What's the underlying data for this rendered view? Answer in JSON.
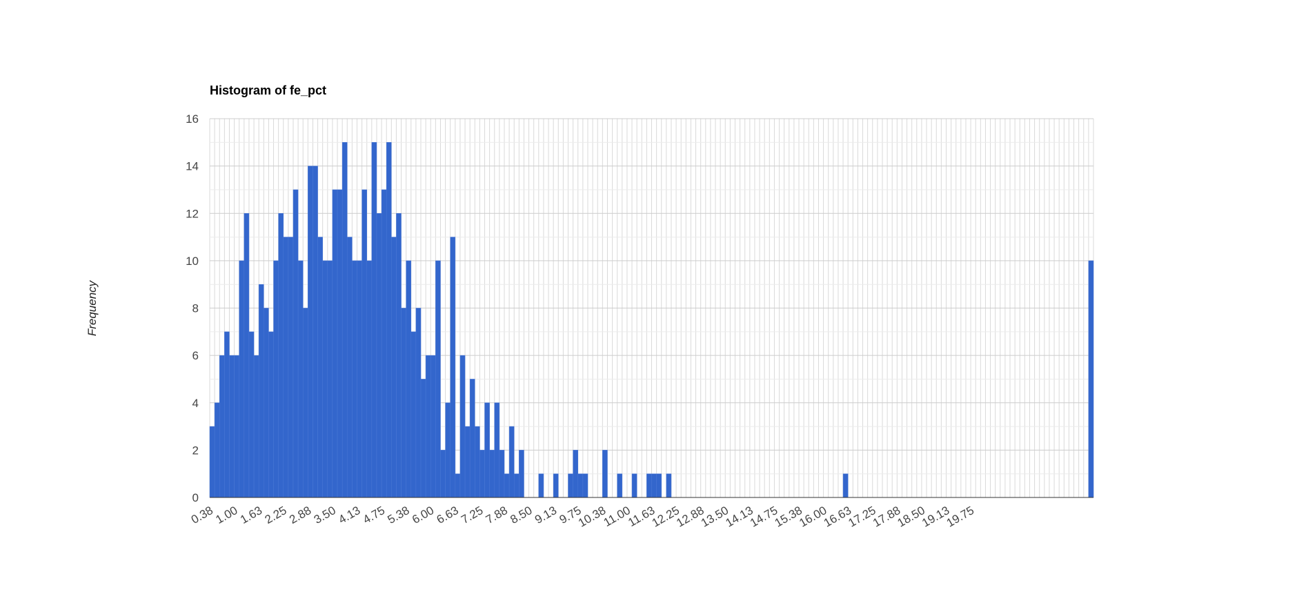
{
  "chart_data": {
    "type": "bar",
    "title": "Histogram of fe_pct",
    "xlabel": "",
    "ylabel": "Frequency",
    "bar_color": "#3366cc",
    "grid": true,
    "minor_grid": true,
    "ylim": [
      0,
      16
    ],
    "y_ticks": [
      "0",
      "2",
      "4",
      "6",
      "8",
      "10",
      "12",
      "14",
      "16"
    ],
    "x_ticks": [
      "0.38",
      "1.00",
      "1.63",
      "2.25",
      "2.88",
      "3.50",
      "4.13",
      "4.75",
      "5.38",
      "6.00",
      "6.63",
      "7.25",
      "7.88",
      "8.50",
      "9.13",
      "9.75",
      "10.38",
      "11.00",
      "11.63",
      "12.25",
      "12.88",
      "13.50",
      "14.13",
      "14.75",
      "15.38",
      "16.00",
      "16.63",
      "17.25",
      "17.88",
      "18.50",
      "19.13",
      "19.75"
    ],
    "bin_start": 0.375,
    "bin_width": 0.125,
    "values": [
      3,
      4,
      6,
      7,
      6,
      6,
      10,
      12,
      7,
      6,
      9,
      8,
      7,
      10,
      12,
      11,
      11,
      13,
      10,
      8,
      14,
      14,
      11,
      10,
      10,
      13,
      13,
      15,
      11,
      10,
      10,
      13,
      10,
      15,
      12,
      13,
      15,
      11,
      12,
      8,
      10,
      7,
      8,
      5,
      6,
      6,
      10,
      2,
      4,
      11,
      1,
      6,
      3,
      5,
      3,
      2,
      4,
      2,
      4,
      2,
      1,
      3,
      1,
      2,
      0,
      0,
      0,
      1,
      0,
      0,
      1,
      0,
      0,
      1,
      2,
      1,
      1,
      0,
      0,
      0,
      2,
      0,
      0,
      1,
      0,
      0,
      1,
      0,
      0,
      1,
      1,
      1,
      0,
      1,
      0,
      0,
      0,
      0,
      0,
      0,
      0,
      0,
      0,
      0,
      0,
      0,
      0,
      0,
      0,
      0,
      0,
      0,
      0,
      0,
      0,
      0,
      0,
      0,
      0,
      0,
      0,
      0,
      0,
      0,
      0,
      0,
      0,
      0,
      0,
      1,
      0,
      0,
      0,
      0,
      0,
      0,
      0,
      0,
      0,
      0,
      0,
      0,
      0,
      0,
      0,
      0,
      0,
      0,
      0,
      0,
      0,
      0,
      0,
      0,
      0,
      0,
      0,
      0,
      0,
      0,
      0,
      0,
      0,
      0,
      0,
      0,
      0,
      0,
      0,
      0,
      0,
      0,
      0,
      0,
      0,
      0,
      0,
      0,
      0,
      10
    ]
  }
}
